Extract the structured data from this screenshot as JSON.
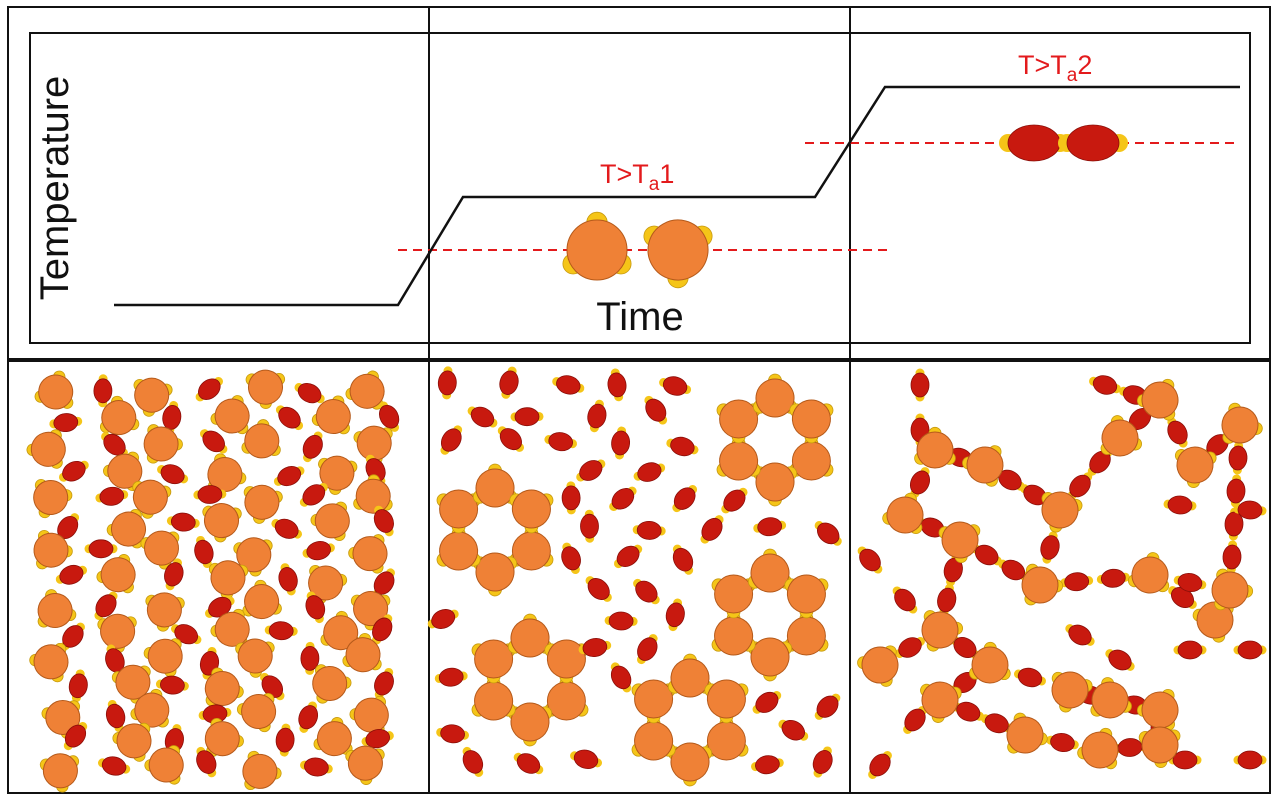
{
  "axes": {
    "x_label": "Time",
    "y_label": "Temperature"
  },
  "thresholds": [
    {
      "prefix": "T>T",
      "subscript": "a",
      "suffix": "1"
    },
    {
      "prefix": "T>T",
      "subscript": "a",
      "suffix": "2"
    }
  ],
  "panels": [
    {
      "id": "panel-1",
      "state": "dispersed"
    },
    {
      "id": "panel-2",
      "state": "rings"
    },
    {
      "id": "panel-3",
      "state": "network"
    }
  ],
  "colors": {
    "large_particle": "#ef8136",
    "large_particle_outline": "#b55a1a",
    "patch": "#f5c518",
    "small_particle": "#c8190f",
    "small_particle_outline": "#8a0e08",
    "threshold_line": "#e31a1c",
    "frame": "#111111"
  }
}
